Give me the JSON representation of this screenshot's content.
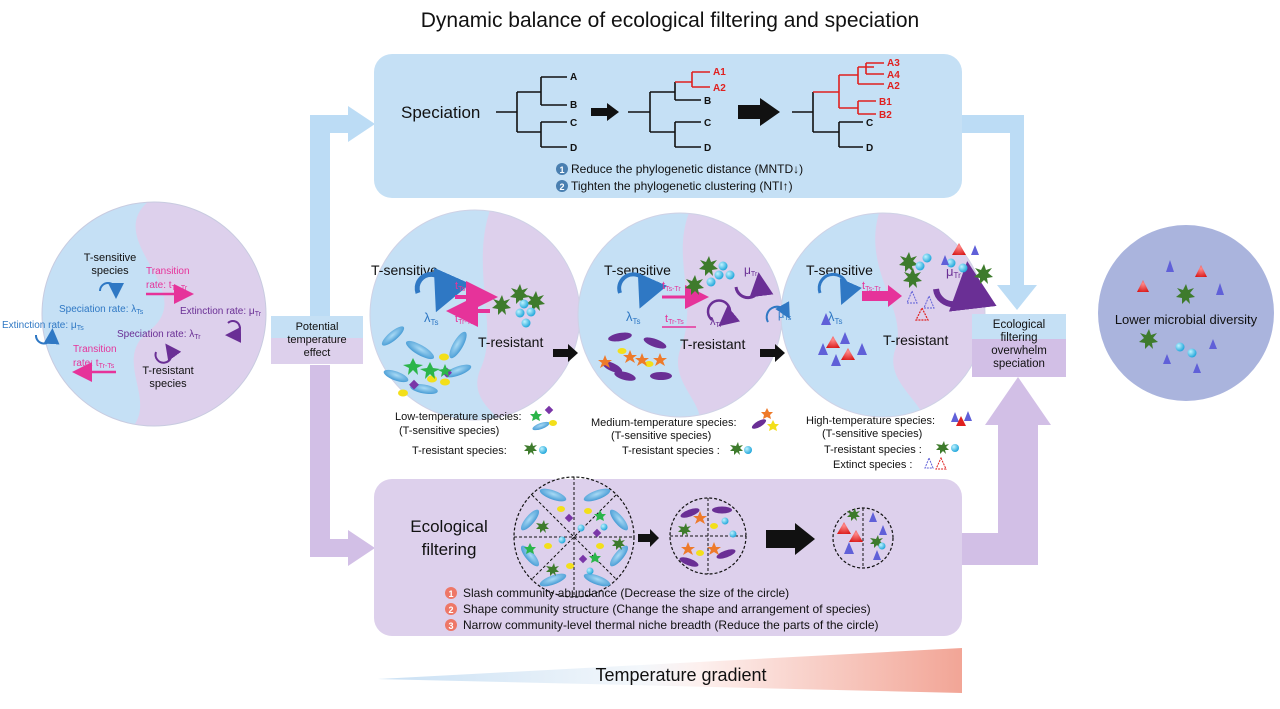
{
  "title": "Dynamic balance of ecological filtering and speciation",
  "colors": {
    "blue_panel": "#c5e0f5",
    "purple_panel": "#ddd0ec",
    "blue_arrow": "#bcdcf5",
    "purple_arrow": "#d2bfe6",
    "right_circle": "#aab4dd",
    "magenta": "#e6339a",
    "purple_dark": "#6a2f95",
    "blue_dark": "#2f78c4",
    "red_tip": "#e0201f"
  },
  "left_circle": {
    "t_sensitive": [
      "T-sensitive",
      "species"
    ],
    "transition_ts_tr": [
      "Transition",
      "rate: t",
      "Ts-Tr"
    ],
    "speciation_ts": [
      "Speciation rate: λ",
      "Ts"
    ],
    "extinction_tr": [
      "Extinction rate: μ",
      "Tr"
    ],
    "extinction_ts": [
      "Extinction rate: μ",
      "Ts"
    ],
    "speciation_tr": [
      "Speciation rate: λ",
      "Tr"
    ],
    "transition_tr_ts": [
      "Transition",
      "rate: t",
      "Tr-Ts"
    ],
    "t_resistant": [
      "T-resistant",
      "species"
    ]
  },
  "potential_box": [
    "Potential",
    "temperature",
    "effect"
  ],
  "speciation": {
    "label": "Speciation",
    "tree1_tips": [
      "A",
      "B",
      "C",
      "D"
    ],
    "tree2_tips": [
      "A1",
      "A2",
      "B",
      "C",
      "D"
    ],
    "tree3_tips": [
      "A3",
      "A4",
      "A2",
      "B1",
      "B2",
      "C",
      "D"
    ],
    "points": [
      {
        "num": "1",
        "text": "Reduce the phylogenetic distance (MNTD",
        "arrow": "↓",
        "close": ")"
      },
      {
        "num": "2",
        "text": "Tighten the phylogenetic clustering (NTI",
        "arrow": "↑",
        "close": ")"
      }
    ]
  },
  "middle": {
    "t_sensitive": "T-sensitive",
    "t_resistant": "T-resistant",
    "lambda_ts": [
      "λ",
      "Ts"
    ],
    "lambda_tr": [
      "λ",
      "Tr"
    ],
    "mu_tr": [
      "μ",
      "Tr"
    ],
    "mu_ts": [
      "μ",
      "Ts"
    ],
    "t_ts_tr": [
      "t",
      "Ts-Tr"
    ],
    "t_tr_ts": [
      "t",
      "Tr-Ts"
    ],
    "captions": {
      "low": [
        "Low-temperature species:",
        "(T-sensitive species)"
      ],
      "medium": [
        "Medium-temperature species:",
        "(T-sensitive species)"
      ],
      "high": [
        "High-temperature species:",
        "(T-sensitive species)"
      ],
      "t_resistant_species": "T-resistant species:",
      "t_resistant_species_sp": "T-resistant species :",
      "extinct_species": "Extinct species :"
    }
  },
  "ecological_box": [
    "Ecological",
    "filtering",
    "overwhelm",
    "speciation"
  ],
  "right_circle": "Lower microbial diversity",
  "ecological_filtering": {
    "label": [
      "Ecological",
      "filtering"
    ],
    "points": [
      {
        "num": "1",
        "text": "Slash community abundance (Decrease the size of the circle)"
      },
      {
        "num": "2",
        "text": "Shape community structure (Change the shape and arrangement of species)"
      },
      {
        "num": "3",
        "text": "Narrow community-level thermal niche breadth (Reduce the parts of the circle)"
      }
    ]
  },
  "temperature_gradient": "Temperature gradient"
}
